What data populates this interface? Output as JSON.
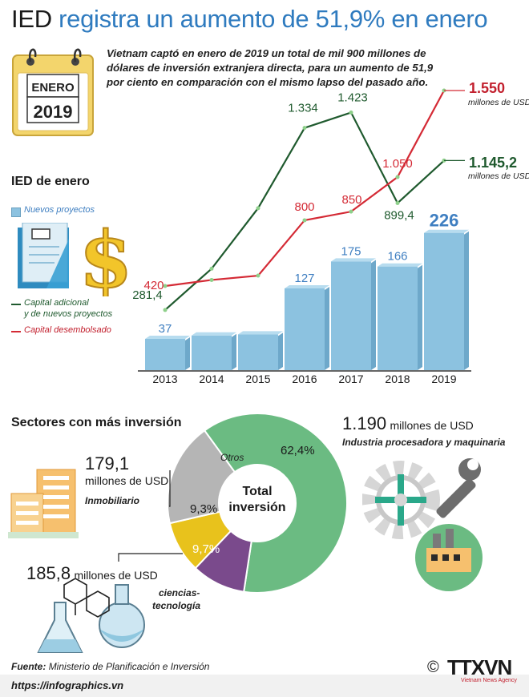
{
  "title_part1": "IED",
  "title_part2": "registra un aumento de 51,9% en enero",
  "calendar": {
    "month": "ENERO",
    "year": "2019"
  },
  "intro": "Vietnam captó en enero de 2019 un total de mil 900 millones de dólares de inversión extranjera directa, para un aumento de 51,9 por ciento en comparación con el mismo lapso del pasado año.",
  "section1_title": "IED de enero",
  "legend": {
    "bars": "Nuevos proyectos",
    "green_line_1": "Capital adicional",
    "green_line_2": "y de nuevos proyectos",
    "red_line": "Capital desembolsado"
  },
  "colors": {
    "green": "#1f5a2e",
    "red": "#d42a35",
    "bar": "#8cc2e0",
    "blue_text": "#3f7fc1"
  },
  "end_labels": {
    "red_value": "1.550",
    "red_unit": "millones de  USD",
    "green_value": "1.145,2",
    "green_unit": "millones de  USD"
  },
  "chart_data": {
    "type": "bar",
    "categories": [
      "2013",
      "2014",
      "2015",
      "2016",
      "2017",
      "2018",
      "2019"
    ],
    "series": [
      {
        "name": "Nuevos proyectos",
        "kind": "bar",
        "values": [
          37,
          43,
          45,
          127,
          175,
          166,
          226
        ],
        "labels": [
          "37",
          "",
          "",
          "127",
          "175",
          "166",
          "226"
        ]
      },
      {
        "name": "Capital adicional y de nuevos proyectos",
        "kind": "line",
        "values": [
          281.4,
          520,
          870,
          1334,
          1423,
          899.4,
          1145.2
        ],
        "labels": [
          "281,4",
          "",
          "",
          "1.334",
          "1.423",
          "899,4",
          "1.145,2"
        ]
      },
      {
        "name": "Capital desembolsado",
        "kind": "line",
        "values": [
          420,
          455,
          480,
          800,
          850,
          1050,
          1550
        ],
        "labels": [
          "420",
          "",
          "",
          "800",
          "850",
          "1.050",
          "1.550"
        ]
      }
    ]
  },
  "section2_title": "Sectores con más inversión",
  "donut": {
    "center_1": "Total",
    "center_2": "inversión",
    "slices": [
      {
        "label": "62,4%",
        "value": 62.4,
        "color": "#6bbb82"
      },
      {
        "label": "9,7%",
        "value": 9.7,
        "color": "#7a4a8c"
      },
      {
        "label": "9,3%",
        "value": 9.3,
        "color": "#e8c21c"
      },
      {
        "label": "Otros",
        "value": 18.6,
        "color": "#b5b5b5"
      }
    ]
  },
  "sectors": {
    "industry_value": "1.190",
    "industry_unit": "millones de USD",
    "industry_name": "Industria procesadora y maquinaria",
    "realestate_value": "179,1",
    "realestate_unit": "millones de USD",
    "realestate_name": "Inmobiliario",
    "science_value": "185,8",
    "science_unit": "millones de USD",
    "science_name_1": "ciencias-",
    "science_name_2": "tecnología"
  },
  "footer": {
    "source_label": "Fuente:",
    "source_text": "Ministerio de Planificación e Inversión",
    "url": "https://infographics.vn",
    "copyright": "©",
    "brand": "TTXVN",
    "brand_sub": "Vietnam News Agency"
  }
}
